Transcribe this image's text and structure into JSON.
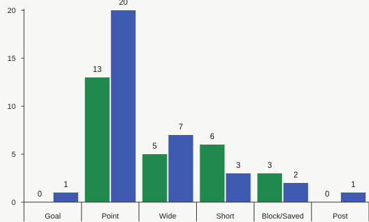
{
  "chart_data": {
    "type": "bar",
    "categories": [
      "Goal",
      "Point",
      "Wide",
      "Short",
      "Block/Saved",
      "Post"
    ],
    "series": [
      {
        "values": [
          0,
          13,
          5,
          6,
          3,
          0
        ],
        "color": "#1f8a4c"
      },
      {
        "values": [
          1,
          20,
          7,
          3,
          2,
          1
        ],
        "color": "#3f5ab0"
      }
    ],
    "yticks": [
      0,
      5,
      10,
      15,
      20
    ],
    "ylim": [
      0,
      20
    ],
    "grid": false,
    "title": "",
    "xlabel": "",
    "ylabel": ""
  }
}
